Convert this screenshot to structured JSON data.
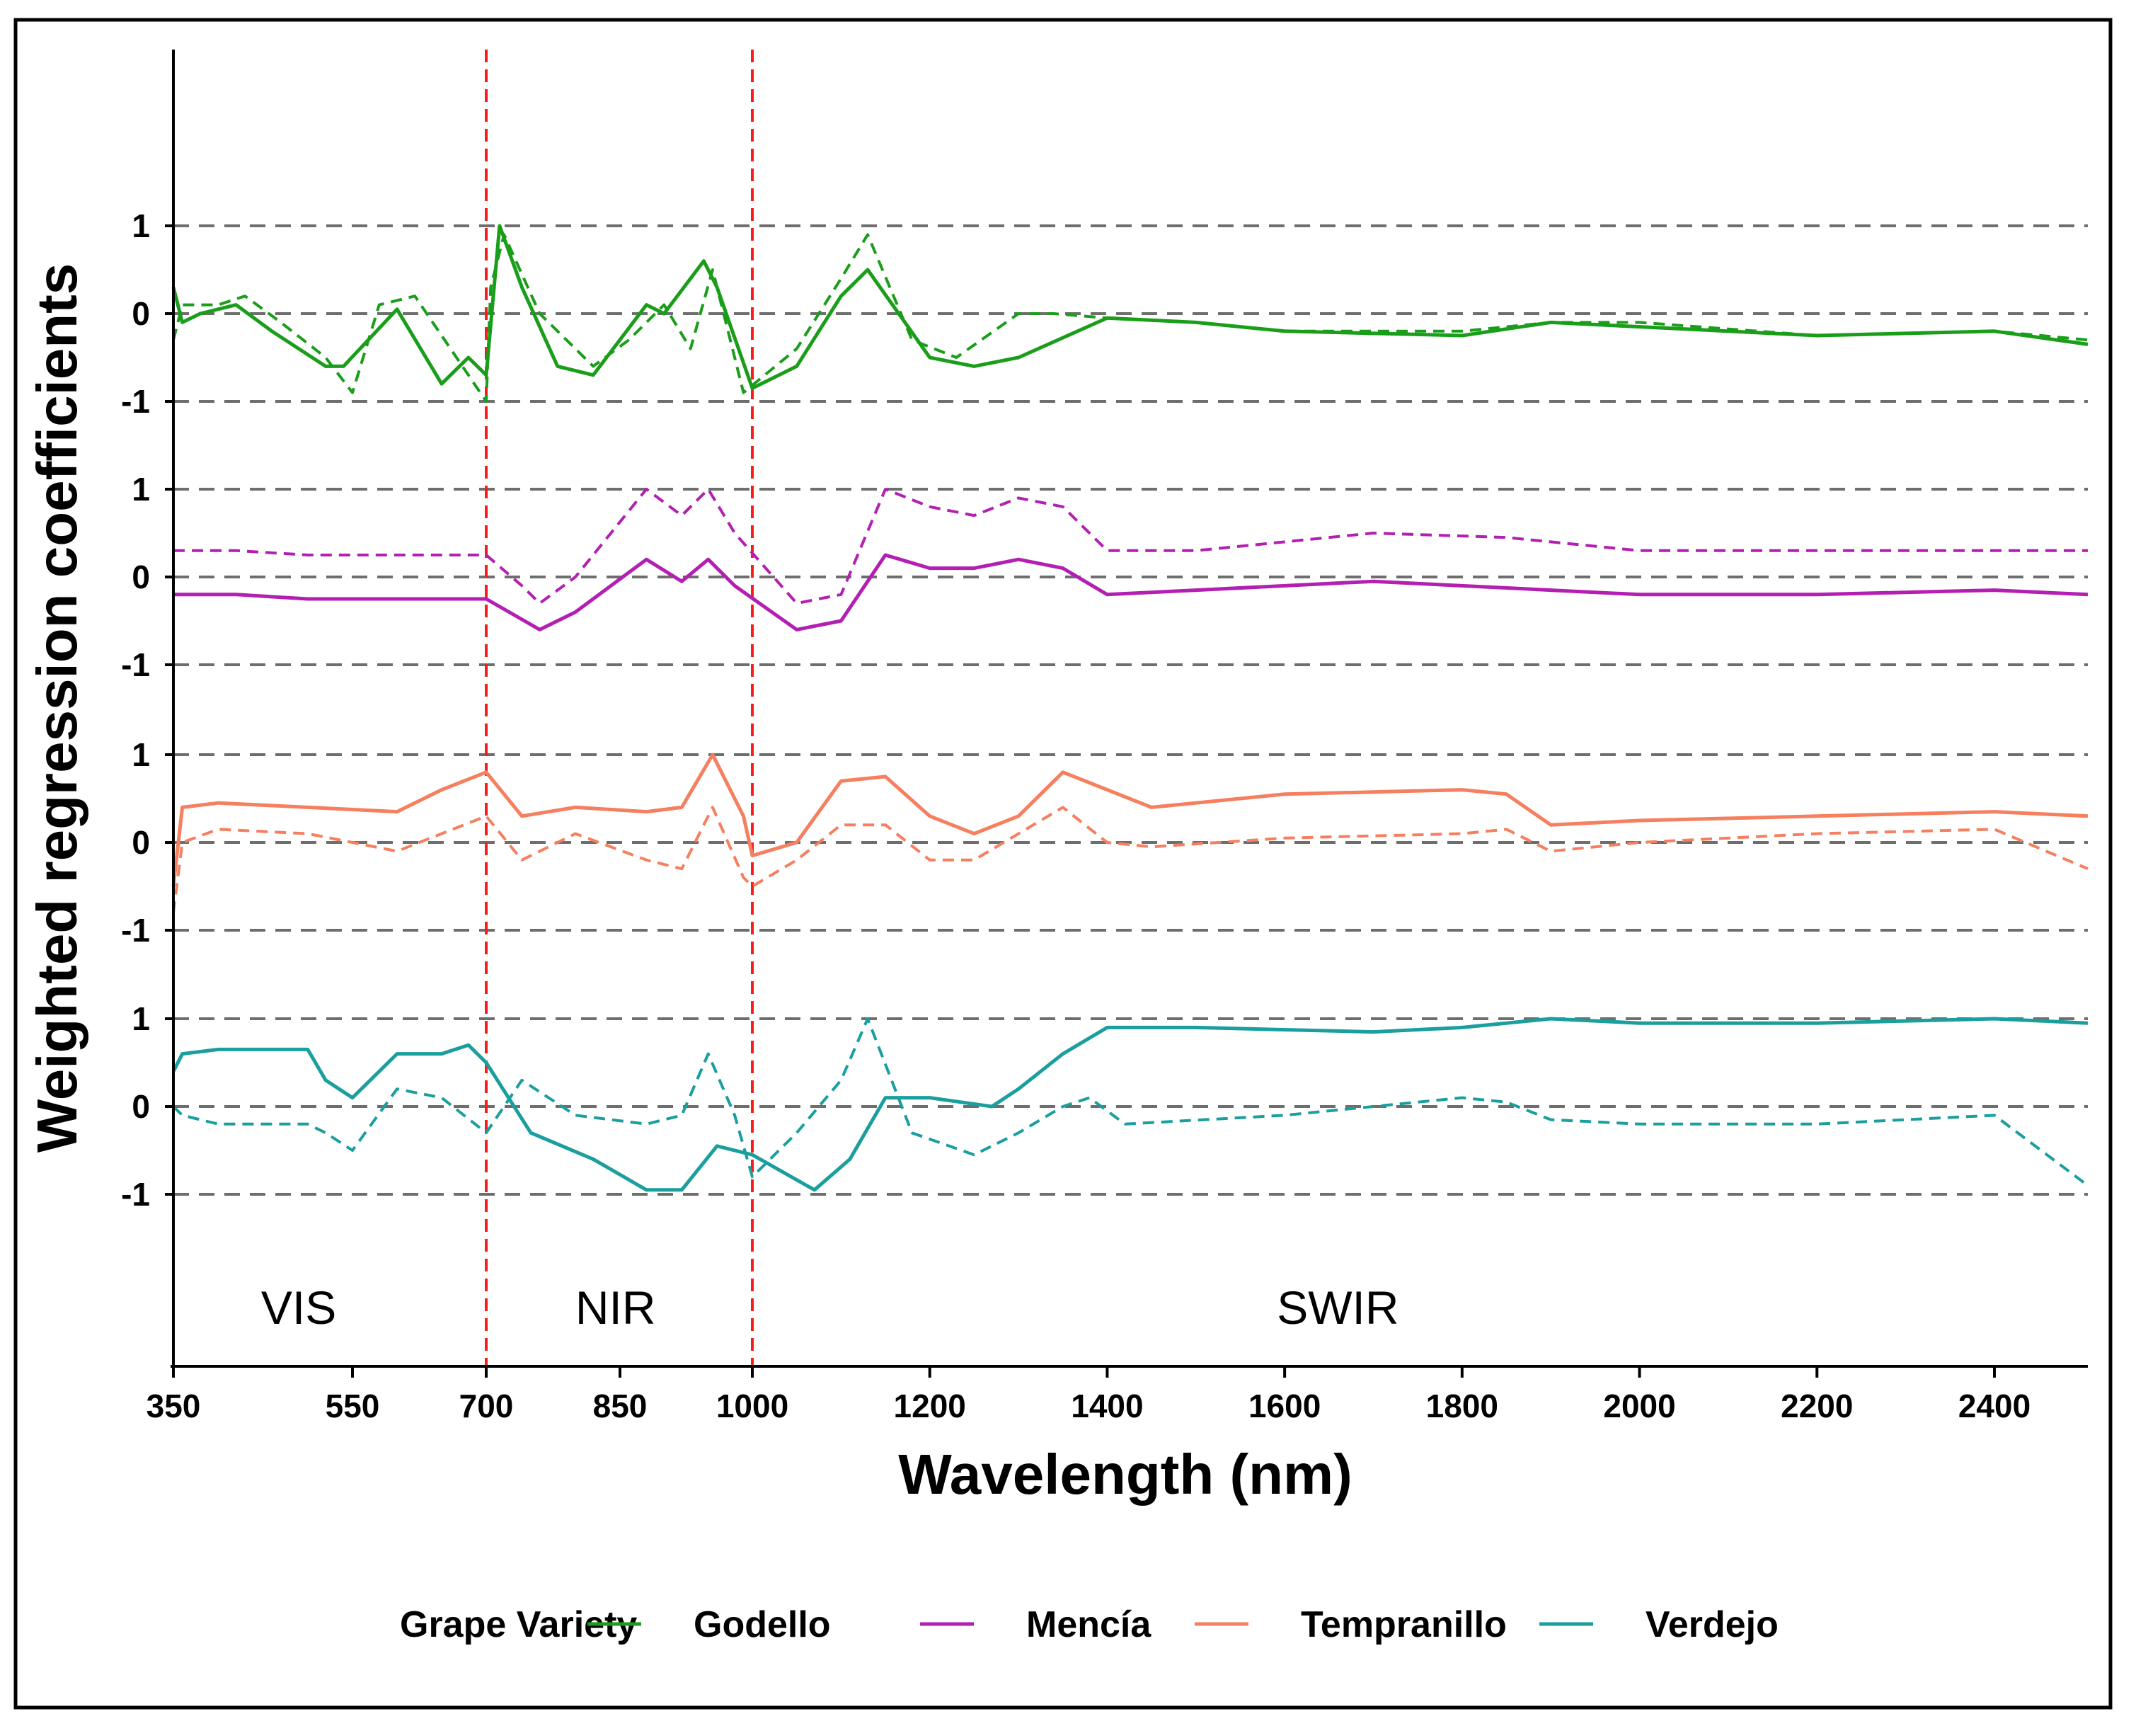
{
  "chart_data": {
    "type": "line",
    "title": "",
    "xlabel": "Wavelength (nm)",
    "ylabel": "Weighted regression coefficients",
    "x_ticks": [
      350,
      550,
      700,
      850,
      1000,
      1200,
      1400,
      1600,
      1800,
      2000,
      2200,
      2400
    ],
    "x_tick_labels": [
      "350",
      "550",
      "700",
      "850",
      "1000",
      "1200",
      "1400",
      "1600",
      "1800",
      "2000",
      "2200",
      "2400"
    ],
    "y_tick_labels": [
      "1",
      "0",
      "-1"
    ],
    "panel_ylim": [
      -1,
      1
    ],
    "grid": "dashed horizontal lines at -1, 0, 1 in each panel",
    "region_boundaries": [
      700,
      1000
    ],
    "regions": [
      {
        "label": "VIS",
        "center": 490
      },
      {
        "label": "NIR",
        "center": 845
      },
      {
        "label": "SWIR",
        "center": 1660
      }
    ],
    "legend": {
      "title": "Grape Variety",
      "position": "bottom"
    },
    "series": [
      {
        "name": "Godello",
        "color": "#1a9e1a",
        "solid": [
          [
            350,
            0.3
          ],
          [
            360,
            -0.1
          ],
          [
            380,
            0.0
          ],
          [
            420,
            0.1
          ],
          [
            460,
            -0.2
          ],
          [
            520,
            -0.6
          ],
          [
            540,
            -0.6
          ],
          [
            600,
            0.05
          ],
          [
            650,
            -0.8
          ],
          [
            680,
            -0.5
          ],
          [
            700,
            -0.7
          ],
          [
            715,
            1.0
          ],
          [
            740,
            0.3
          ],
          [
            780,
            -0.6
          ],
          [
            820,
            -0.7
          ],
          [
            880,
            0.1
          ],
          [
            900,
            0.0
          ],
          [
            945,
            0.6
          ],
          [
            960,
            0.3
          ],
          [
            1000,
            -0.85
          ],
          [
            1050,
            -0.6
          ],
          [
            1100,
            0.2
          ],
          [
            1130,
            0.5
          ],
          [
            1200,
            -0.5
          ],
          [
            1250,
            -0.6
          ],
          [
            1300,
            -0.5
          ],
          [
            1400,
            -0.05
          ],
          [
            1500,
            -0.1
          ],
          [
            1600,
            -0.2
          ],
          [
            1800,
            -0.25
          ],
          [
            1900,
            -0.1
          ],
          [
            2000,
            -0.15
          ],
          [
            2200,
            -0.25
          ],
          [
            2400,
            -0.2
          ],
          [
            2480,
            -0.35
          ]
        ],
        "dashed": [
          [
            350,
            -0.3
          ],
          [
            360,
            0.1
          ],
          [
            400,
            0.1
          ],
          [
            430,
            0.2
          ],
          [
            470,
            -0.1
          ],
          [
            520,
            -0.5
          ],
          [
            550,
            -0.9
          ],
          [
            580,
            0.1
          ],
          [
            620,
            0.2
          ],
          [
            660,
            -0.4
          ],
          [
            700,
            -1.0
          ],
          [
            705,
            0.3
          ],
          [
            720,
            0.9
          ],
          [
            760,
            0.0
          ],
          [
            820,
            -0.6
          ],
          [
            860,
            -0.3
          ],
          [
            900,
            0.1
          ],
          [
            930,
            -0.4
          ],
          [
            955,
            0.5
          ],
          [
            990,
            -0.9
          ],
          [
            1050,
            -0.4
          ],
          [
            1100,
            0.4
          ],
          [
            1130,
            0.9
          ],
          [
            1180,
            -0.3
          ],
          [
            1230,
            -0.5
          ],
          [
            1300,
            0.0
          ],
          [
            1340,
            0.0
          ],
          [
            1400,
            -0.05
          ],
          [
            1500,
            -0.1
          ],
          [
            1600,
            -0.2
          ],
          [
            1800,
            -0.2
          ],
          [
            1900,
            -0.1
          ],
          [
            2000,
            -0.1
          ],
          [
            2200,
            -0.25
          ],
          [
            2400,
            -0.2
          ],
          [
            2480,
            -0.3
          ]
        ]
      },
      {
        "name": "Mencía",
        "color": "#b31fb3",
        "solid": [
          [
            350,
            -0.2
          ],
          [
            360,
            -0.2
          ],
          [
            420,
            -0.2
          ],
          [
            500,
            -0.25
          ],
          [
            700,
            -0.25
          ],
          [
            760,
            -0.6
          ],
          [
            800,
            -0.4
          ],
          [
            880,
            0.2
          ],
          [
            920,
            -0.05
          ],
          [
            950,
            0.2
          ],
          [
            980,
            -0.1
          ],
          [
            1050,
            -0.6
          ],
          [
            1100,
            -0.5
          ],
          [
            1150,
            0.25
          ],
          [
            1200,
            0.1
          ],
          [
            1250,
            0.1
          ],
          [
            1300,
            0.2
          ],
          [
            1350,
            0.1
          ],
          [
            1400,
            -0.2
          ],
          [
            1500,
            -0.15
          ],
          [
            1700,
            -0.05
          ],
          [
            1900,
            -0.15
          ],
          [
            2000,
            -0.2
          ],
          [
            2200,
            -0.2
          ],
          [
            2400,
            -0.15
          ],
          [
            2480,
            -0.2
          ]
        ],
        "dashed": [
          [
            350,
            0.3
          ],
          [
            360,
            0.3
          ],
          [
            420,
            0.3
          ],
          [
            500,
            0.25
          ],
          [
            700,
            0.25
          ],
          [
            740,
            -0.1
          ],
          [
            760,
            -0.3
          ],
          [
            800,
            0.0
          ],
          [
            880,
            1.0
          ],
          [
            920,
            0.7
          ],
          [
            950,
            1.0
          ],
          [
            980,
            0.5
          ],
          [
            1050,
            -0.3
          ],
          [
            1100,
            -0.2
          ],
          [
            1150,
            1.0
          ],
          [
            1200,
            0.8
          ],
          [
            1250,
            0.7
          ],
          [
            1300,
            0.9
          ],
          [
            1350,
            0.8
          ],
          [
            1400,
            0.3
          ],
          [
            1500,
            0.3
          ],
          [
            1700,
            0.5
          ],
          [
            1850,
            0.45
          ],
          [
            2000,
            0.3
          ],
          [
            2200,
            0.3
          ],
          [
            2400,
            0.3
          ],
          [
            2480,
            0.3
          ]
        ]
      },
      {
        "name": "Tempranillo",
        "color": "#f57f5e",
        "solid": [
          [
            350,
            -0.5
          ],
          [
            360,
            0.4
          ],
          [
            400,
            0.45
          ],
          [
            500,
            0.4
          ],
          [
            600,
            0.35
          ],
          [
            650,
            0.6
          ],
          [
            700,
            0.8
          ],
          [
            740,
            0.3
          ],
          [
            800,
            0.4
          ],
          [
            880,
            0.35
          ],
          [
            920,
            0.4
          ],
          [
            955,
            1.0
          ],
          [
            990,
            0.3
          ],
          [
            1000,
            -0.15
          ],
          [
            1050,
            0.0
          ],
          [
            1100,
            0.7
          ],
          [
            1150,
            0.75
          ],
          [
            1200,
            0.3
          ],
          [
            1250,
            0.1
          ],
          [
            1300,
            0.3
          ],
          [
            1350,
            0.8
          ],
          [
            1400,
            0.6
          ],
          [
            1450,
            0.4
          ],
          [
            1600,
            0.55
          ],
          [
            1800,
            0.6
          ],
          [
            1850,
            0.55
          ],
          [
            1900,
            0.2
          ],
          [
            2000,
            0.25
          ],
          [
            2200,
            0.3
          ],
          [
            2400,
            0.35
          ],
          [
            2480,
            0.3
          ]
        ],
        "dashed": [
          [
            350,
            -0.8
          ],
          [
            360,
            0.0
          ],
          [
            400,
            0.15
          ],
          [
            500,
            0.1
          ],
          [
            600,
            -0.1
          ],
          [
            650,
            0.1
          ],
          [
            700,
            0.3
          ],
          [
            740,
            -0.2
          ],
          [
            800,
            0.1
          ],
          [
            880,
            -0.2
          ],
          [
            920,
            -0.3
          ],
          [
            955,
            0.4
          ],
          [
            990,
            -0.4
          ],
          [
            1000,
            -0.5
          ],
          [
            1050,
            -0.2
          ],
          [
            1100,
            0.2
          ],
          [
            1150,
            0.2
          ],
          [
            1200,
            -0.2
          ],
          [
            1250,
            -0.2
          ],
          [
            1300,
            0.1
          ],
          [
            1350,
            0.4
          ],
          [
            1400,
            0.0
          ],
          [
            1450,
            -0.05
          ],
          [
            1600,
            0.05
          ],
          [
            1800,
            0.1
          ],
          [
            1850,
            0.15
          ],
          [
            1900,
            -0.1
          ],
          [
            2000,
            0.0
          ],
          [
            2200,
            0.1
          ],
          [
            2400,
            0.15
          ],
          [
            2480,
            -0.3
          ]
        ]
      },
      {
        "name": "Verdejo",
        "color": "#1a9e9e",
        "solid": [
          [
            350,
            0.4
          ],
          [
            360,
            0.6
          ],
          [
            400,
            0.65
          ],
          [
            500,
            0.65
          ],
          [
            520,
            0.3
          ],
          [
            550,
            0.1
          ],
          [
            600,
            0.6
          ],
          [
            650,
            0.6
          ],
          [
            680,
            0.7
          ],
          [
            700,
            0.5
          ],
          [
            750,
            -0.3
          ],
          [
            820,
            -0.6
          ],
          [
            880,
            -0.95
          ],
          [
            920,
            -0.95
          ],
          [
            960,
            -0.45
          ],
          [
            1000,
            -0.55
          ],
          [
            1070,
            -0.95
          ],
          [
            1110,
            -0.6
          ],
          [
            1150,
            0.1
          ],
          [
            1200,
            0.1
          ],
          [
            1270,
            0.0
          ],
          [
            1300,
            0.2
          ],
          [
            1350,
            0.6
          ],
          [
            1400,
            0.9
          ],
          [
            1500,
            0.9
          ],
          [
            1700,
            0.85
          ],
          [
            1800,
            0.9
          ],
          [
            1900,
            1.0
          ],
          [
            2000,
            0.95
          ],
          [
            2200,
            0.95
          ],
          [
            2400,
            1.0
          ],
          [
            2480,
            0.95
          ]
        ],
        "dashed": [
          [
            350,
            0.0
          ],
          [
            360,
            -0.1
          ],
          [
            400,
            -0.2
          ],
          [
            500,
            -0.2
          ],
          [
            520,
            -0.3
          ],
          [
            550,
            -0.5
          ],
          [
            600,
            0.2
          ],
          [
            650,
            0.1
          ],
          [
            700,
            -0.3
          ],
          [
            740,
            0.3
          ],
          [
            800,
            -0.1
          ],
          [
            880,
            -0.2
          ],
          [
            920,
            -0.1
          ],
          [
            950,
            0.6
          ],
          [
            980,
            -0.1
          ],
          [
            1000,
            -0.8
          ],
          [
            1050,
            -0.3
          ],
          [
            1100,
            0.3
          ],
          [
            1130,
            1.0
          ],
          [
            1180,
            -0.3
          ],
          [
            1250,
            -0.55
          ],
          [
            1300,
            -0.3
          ],
          [
            1350,
            0.0
          ],
          [
            1380,
            0.1
          ],
          [
            1420,
            -0.2
          ],
          [
            1600,
            -0.1
          ],
          [
            1800,
            0.1
          ],
          [
            1850,
            0.05
          ],
          [
            1900,
            -0.15
          ],
          [
            2000,
            -0.2
          ],
          [
            2200,
            -0.2
          ],
          [
            2400,
            -0.1
          ],
          [
            2480,
            -0.9
          ]
        ]
      }
    ]
  }
}
